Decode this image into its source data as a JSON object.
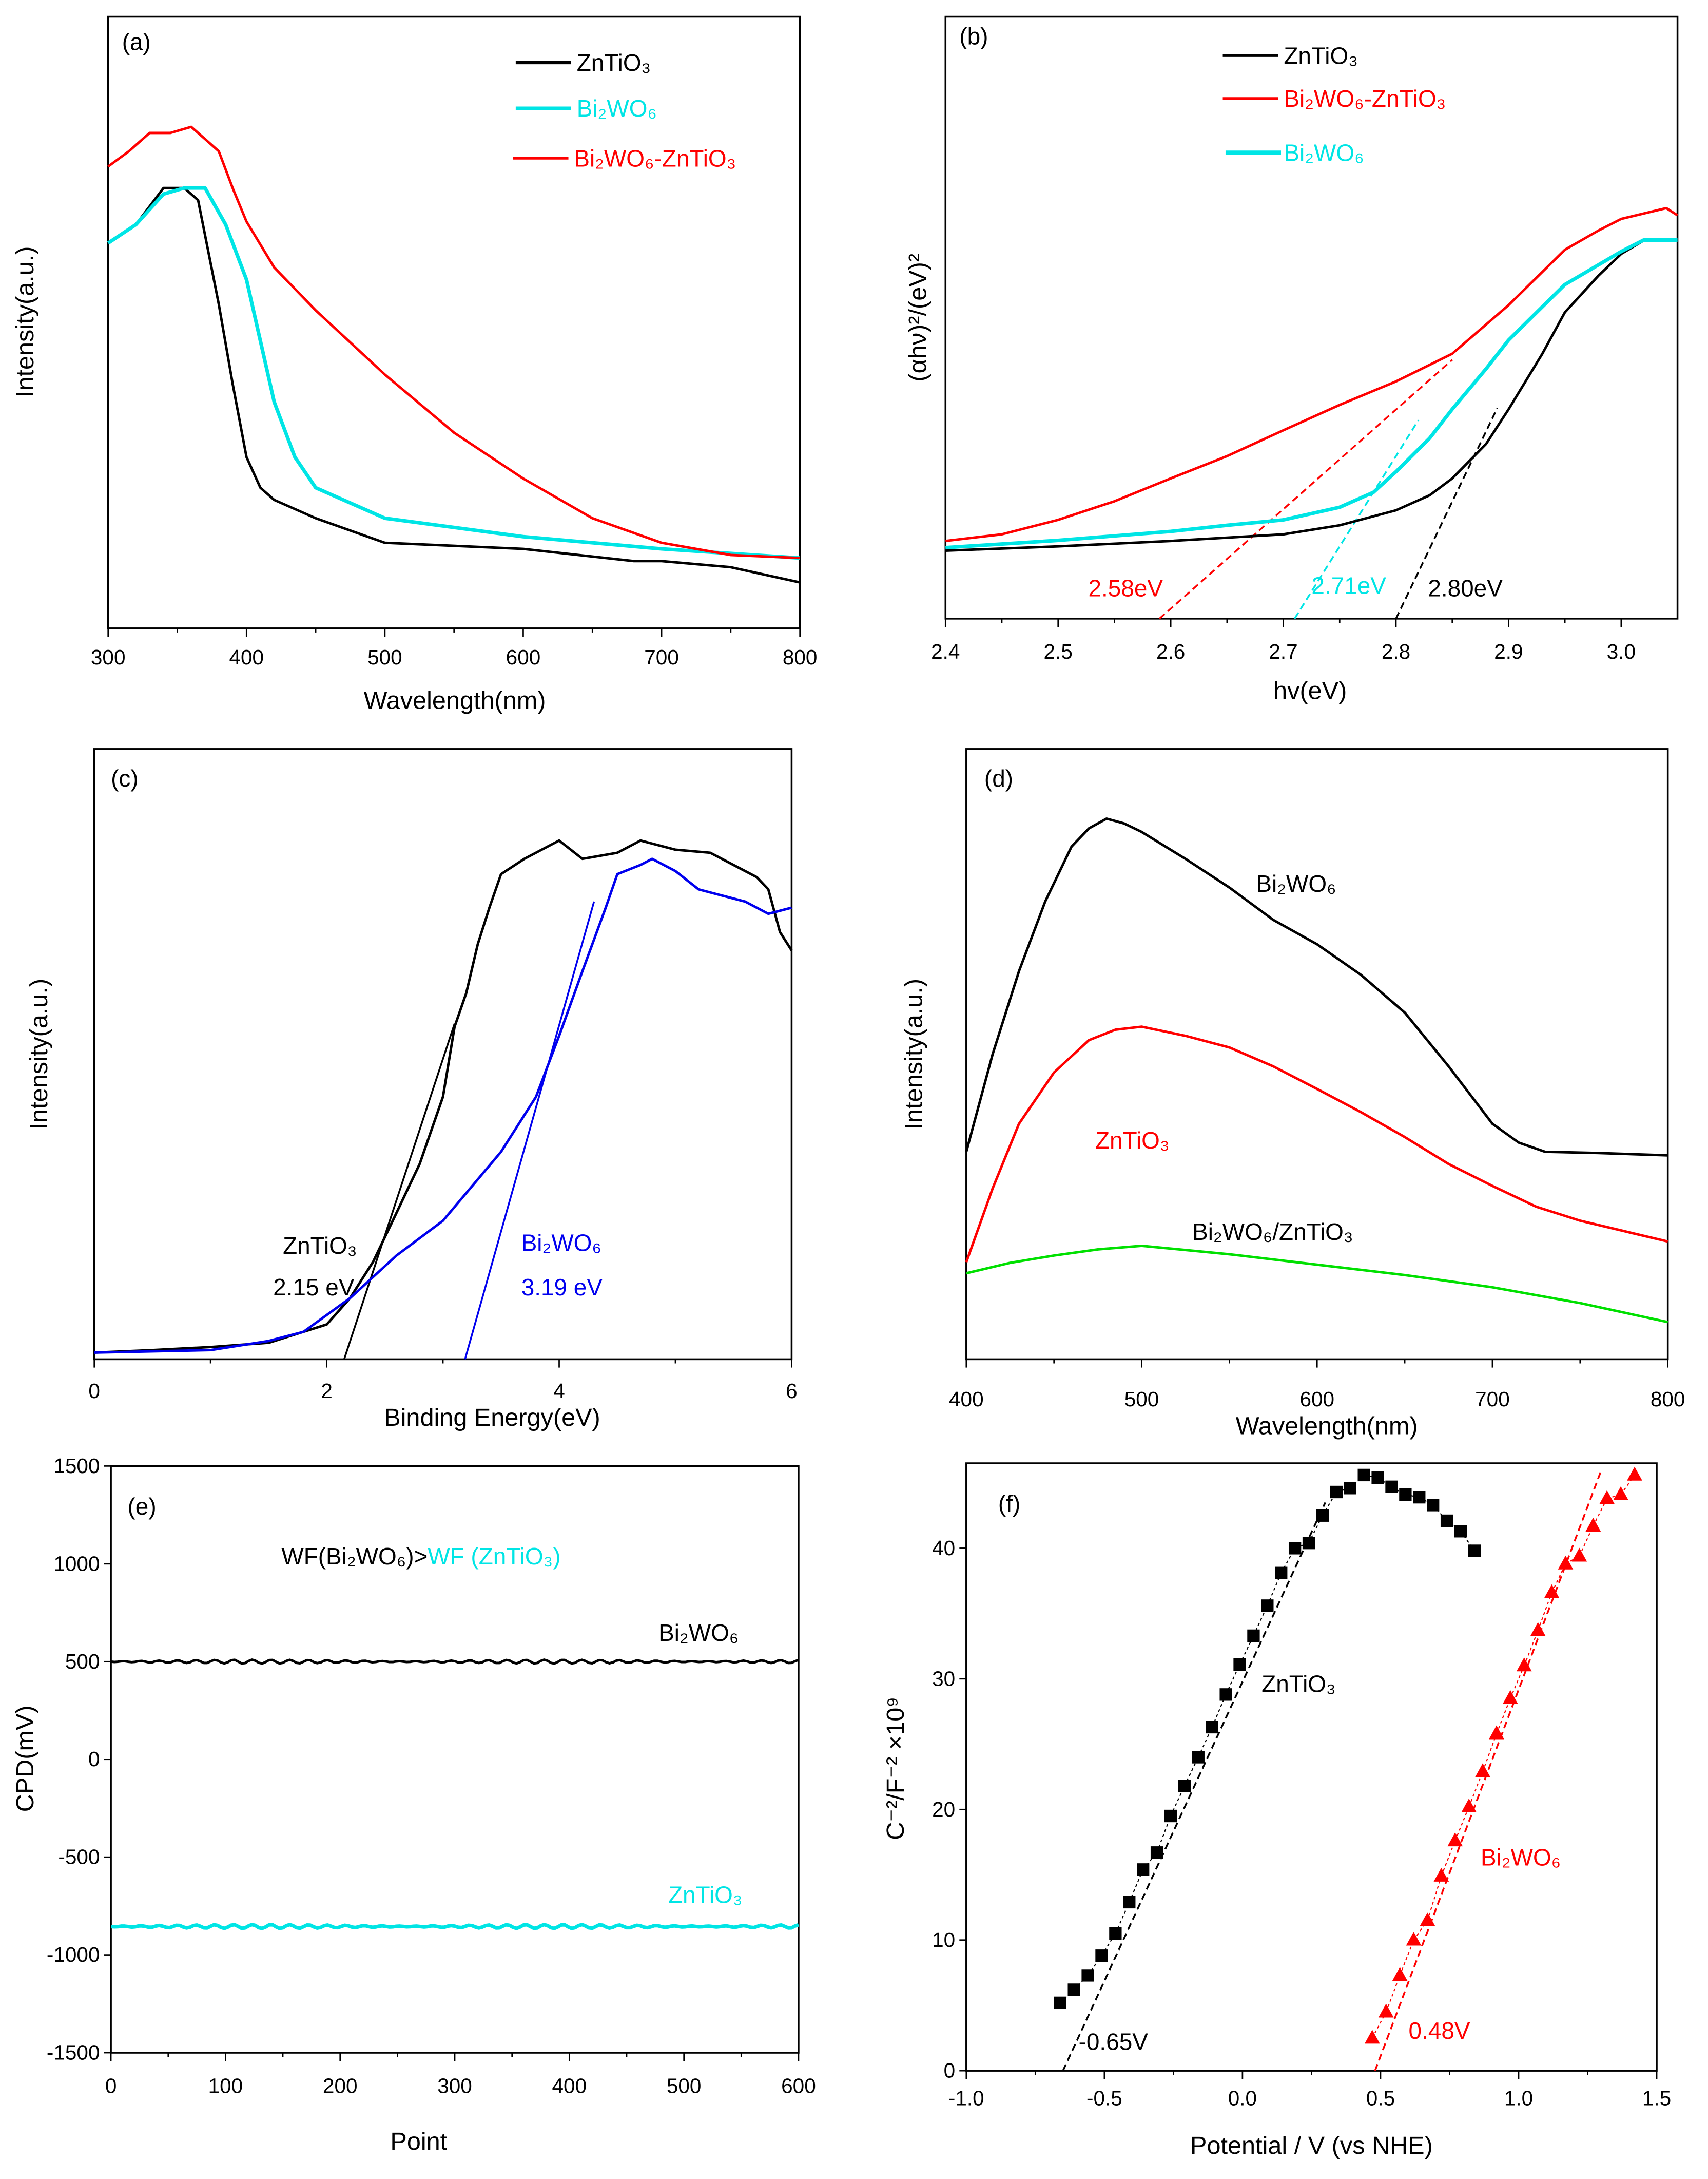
{
  "chart_data": [
    {
      "panel": "(a)",
      "type": "line",
      "xlabel": "Wavelength(nm)",
      "ylabel": "Intensity(a.u.)",
      "xlim": [
        300,
        800
      ],
      "ylim": [
        0,
        1
      ],
      "xticks": [
        300,
        400,
        500,
        600,
        700,
        800
      ],
      "yticks": [],
      "legend": "top-right",
      "series": [
        {
          "name": "ZnTiO₃",
          "color": "#000000",
          "x": [
            300,
            320,
            340,
            355,
            365,
            380,
            390,
            400,
            410,
            420,
            450,
            500,
            600,
            680,
            700,
            750,
            800
          ],
          "y": [
            0.63,
            0.66,
            0.72,
            0.72,
            0.7,
            0.53,
            0.4,
            0.28,
            0.23,
            0.21,
            0.18,
            0.14,
            0.13,
            0.11,
            0.11,
            0.1,
            0.075
          ]
        },
        {
          "name": "Bi₂WO₆",
          "color": "#00e5e5",
          "x": [
            300,
            320,
            340,
            355,
            370,
            385,
            400,
            410,
            420,
            435,
            450,
            500,
            600,
            700,
            800
          ],
          "y": [
            0.63,
            0.66,
            0.71,
            0.72,
            0.72,
            0.66,
            0.57,
            0.47,
            0.37,
            0.28,
            0.23,
            0.18,
            0.15,
            0.13,
            0.115
          ]
        },
        {
          "name": "Bi₂WO₆-ZnTiO₃",
          "color": "#ff0000",
          "x": [
            300,
            315,
            330,
            345,
            360,
            370,
            380,
            390,
            400,
            420,
            450,
            500,
            550,
            600,
            650,
            700,
            750,
            800
          ],
          "y": [
            0.755,
            0.78,
            0.81,
            0.81,
            0.82,
            0.8,
            0.78,
            0.72,
            0.665,
            0.59,
            0.52,
            0.415,
            0.32,
            0.245,
            0.18,
            0.14,
            0.12,
            0.115
          ]
        }
      ]
    },
    {
      "panel": "(b)",
      "type": "line",
      "xlabel": "hv(eV)",
      "ylabel": "(αhν)²/(eV)²",
      "xlim": [
        2.4,
        3.05
      ],
      "ylim": [
        0,
        1
      ],
      "xticks": [
        2.4,
        2.5,
        2.6,
        2.7,
        2.8,
        2.9,
        3.0
      ],
      "yticks": [],
      "legend": "top-center",
      "series": [
        {
          "name": "ZnTiO₃",
          "color": "#000000",
          "x": [
            2.4,
            2.5,
            2.6,
            2.7,
            2.75,
            2.8,
            2.83,
            2.85,
            2.88,
            2.9,
            2.93,
            2.95,
            2.98,
            3.0,
            3.02,
            3.05
          ],
          "y": [
            0.113,
            0.12,
            0.129,
            0.14,
            0.155,
            0.18,
            0.205,
            0.233,
            0.29,
            0.348,
            0.44,
            0.509,
            0.57,
            0.606,
            0.628,
            0.629
          ]
        },
        {
          "name": "Bi₂WO₆-ZnTiO₃",
          "color": "#ff0000",
          "x": [
            2.4,
            2.45,
            2.5,
            2.55,
            2.6,
            2.65,
            2.7,
            2.75,
            2.8,
            2.85,
            2.9,
            2.95,
            2.98,
            3.0,
            3.04,
            3.05
          ],
          "y": [
            0.129,
            0.14,
            0.164,
            0.195,
            0.233,
            0.27,
            0.313,
            0.355,
            0.394,
            0.44,
            0.521,
            0.613,
            0.645,
            0.664,
            0.682,
            0.67
          ]
        },
        {
          "name": "Bi₂WO₆",
          "color": "#00e5e5",
          "x": [
            2.4,
            2.5,
            2.6,
            2.65,
            2.7,
            2.75,
            2.78,
            2.8,
            2.83,
            2.85,
            2.88,
            2.9,
            2.95,
            3.0,
            3.02,
            3.05
          ],
          "y": [
            0.118,
            0.13,
            0.145,
            0.155,
            0.164,
            0.185,
            0.21,
            0.244,
            0.3,
            0.348,
            0.415,
            0.463,
            0.555,
            0.61,
            0.629,
            0.629
          ]
        }
      ],
      "tangents": [
        {
          "label": "2.58eV",
          "color": "#ff0000",
          "x": [
            2.59,
            2.85
          ],
          "y": [
            0,
            0.43
          ]
        },
        {
          "label": "2.71eV",
          "color": "#00e5e5",
          "x": [
            2.71,
            2.82
          ],
          "y": [
            0,
            0.33
          ]
        },
        {
          "label": "2.80eV",
          "color": "#000000",
          "x": [
            2.8,
            2.89
          ],
          "y": [
            0,
            0.35
          ]
        }
      ]
    },
    {
      "panel": "(c)",
      "type": "line",
      "xlabel": "Binding Energy(eV)",
      "ylabel": "Intensity(a.u.)",
      "xlim": [
        0,
        6
      ],
      "ylim": [
        0,
        1
      ],
      "xticks": [
        0,
        2,
        4,
        6
      ],
      "yticks": [],
      "series": [
        {
          "name": "ZnTiO₃",
          "color": "#000000",
          "x": [
            0,
            0.5,
            1,
            1.5,
            2,
            2.2,
            2.4,
            2.6,
            2.8,
            3.0,
            3.1,
            3.2,
            3.3,
            3.4,
            3.5,
            3.7,
            3.9,
            4.0,
            4.2,
            4.5,
            4.7,
            5.0,
            5.3,
            5.5,
            5.7,
            5.8,
            5.9,
            6.0
          ],
          "y": [
            0.011,
            0.015,
            0.02,
            0.027,
            0.057,
            0.1,
            0.16,
            0.24,
            0.32,
            0.43,
            0.545,
            0.6,
            0.68,
            0.74,
            0.795,
            0.82,
            0.84,
            0.85,
            0.82,
            0.83,
            0.85,
            0.835,
            0.83,
            0.81,
            0.79,
            0.77,
            0.7,
            0.67
          ]
        },
        {
          "name": "Bi₂WO₆",
          "color": "#0000ee",
          "x": [
            0,
            1,
            1.5,
            1.8,
            2.2,
            2.6,
            3.0,
            3.5,
            3.8,
            4.0,
            4.2,
            4.4,
            4.5,
            4.7,
            4.8,
            5.0,
            5.2,
            5.4,
            5.6,
            5.8,
            6.0
          ],
          "y": [
            0.011,
            0.015,
            0.03,
            0.045,
            0.1,
            0.17,
            0.227,
            0.34,
            0.43,
            0.53,
            0.636,
            0.74,
            0.795,
            0.81,
            0.82,
            0.8,
            0.77,
            0.76,
            0.75,
            0.73,
            0.74
          ]
        }
      ],
      "tangents": [
        {
          "label": "2.15 eV",
          "color": "#000000",
          "x": [
            2.15,
            3.1
          ],
          "y": [
            0,
            0.55
          ]
        },
        {
          "label": "3.19 eV",
          "color": "#0000ee",
          "x": [
            3.19,
            4.3
          ],
          "y": [
            0,
            0.75
          ]
        }
      ]
    },
    {
      "panel": "(d)",
      "type": "line",
      "xlabel": "Wavelength(nm)",
      "ylabel": "Intensity(a.u.)",
      "xlim": [
        400,
        800
      ],
      "ylim": [
        0,
        1
      ],
      "xticks": [
        400,
        500,
        600,
        700,
        800
      ],
      "yticks": [],
      "series": [
        {
          "name": "Bi₂WO₆",
          "color": "#000000",
          "x": [
            400,
            415,
            430,
            445,
            460,
            470,
            480,
            490,
            500,
            525,
            550,
            575,
            600,
            625,
            650,
            675,
            700,
            715,
            730,
            760,
            800
          ],
          "y": [
            0.34,
            0.5,
            0.636,
            0.75,
            0.84,
            0.87,
            0.886,
            0.878,
            0.864,
            0.82,
            0.773,
            0.72,
            0.68,
            0.63,
            0.568,
            0.48,
            0.386,
            0.355,
            0.34,
            0.338,
            0.334
          ]
        },
        {
          "name": "ZnTiO₃",
          "color": "#ff0000",
          "x": [
            400,
            415,
            430,
            450,
            470,
            485,
            500,
            525,
            550,
            575,
            600,
            625,
            650,
            675,
            700,
            725,
            750,
            775,
            800
          ],
          "y": [
            0.159,
            0.28,
            0.386,
            0.47,
            0.523,
            0.54,
            0.545,
            0.53,
            0.511,
            0.48,
            0.443,
            0.405,
            0.364,
            0.32,
            0.284,
            0.25,
            0.227,
            0.21,
            0.193
          ]
        },
        {
          "name": "Bi₂WO₆/ZnTiO₃",
          "color": "#00e000",
          "x": [
            400,
            425,
            450,
            475,
            500,
            550,
            600,
            650,
            700,
            750,
            800
          ],
          "y": [
            0.141,
            0.158,
            0.17,
            0.18,
            0.186,
            0.172,
            0.155,
            0.138,
            0.118,
            0.092,
            0.061
          ]
        }
      ]
    },
    {
      "panel": "(e)",
      "type": "line",
      "xlabel": "Point",
      "ylabel": "CPD(mV)",
      "xlim": [
        0,
        600
      ],
      "ylim": [
        -1500,
        1500
      ],
      "xticks": [
        0,
        100,
        200,
        300,
        400,
        500,
        600
      ],
      "yticks": [
        -1500,
        -1000,
        -500,
        0,
        500,
        1000,
        1500
      ],
      "annotation": {
        "left": "WF(Bi₂WO₆)>",
        "right": "WF (ZnTiO₃)",
        "right_color": "#00e5e5"
      },
      "series": [
        {
          "name": "Bi₂WO₆",
          "color": "#000000",
          "x": [
            0,
            600
          ],
          "y": [
            500,
            500
          ]
        },
        {
          "name": "ZnTiO₃",
          "color": "#00e5e5",
          "x": [
            0,
            600
          ],
          "y": [
            -855,
            -855
          ]
        }
      ]
    },
    {
      "panel": "(f)",
      "type": "scatter",
      "xlabel": "Potential / V (vs NHE)",
      "ylabel": "C⁻²/F⁻² ×10⁹",
      "xlim": [
        -1.0,
        1.5
      ],
      "ylim": [
        0,
        46.5
      ],
      "xticks": [
        -1.0,
        -0.5,
        0.0,
        0.5,
        1.0,
        1.5
      ],
      "yticks": [
        0,
        10,
        20,
        30,
        40
      ],
      "series": [
        {
          "name": "ZnTiO₃",
          "color": "#000000",
          "marker": "square",
          "x_start": -0.66,
          "x_step": 0.05,
          "y": [
            5.2,
            6.2,
            7.3,
            8.8,
            10.5,
            12.9,
            15.4,
            16.7,
            19.5,
            21.8,
            24.0,
            26.3,
            28.8,
            31.1,
            33.3,
            35.6,
            38.1,
            40.0,
            40.4,
            42.5,
            44.3,
            44.6,
            45.6,
            45.4,
            44.7,
            44.1,
            43.9,
            43.3,
            42.1,
            41.3,
            39.8
          ]
        },
        {
          "name": "Bi₂WO₆",
          "color": "#ff0000",
          "marker": "triangle",
          "x_start": 0.47,
          "x_step": 0.05,
          "y": [
            2.5,
            4.5,
            7.3,
            10.0,
            11.5,
            14.9,
            17.6,
            20.2,
            22.9,
            25.8,
            28.5,
            31.0,
            33.7,
            36.6,
            38.8,
            39.4,
            41.7,
            43.8,
            44.1,
            45.6
          ]
        }
      ],
      "tangents": [
        {
          "label": "-0.65V",
          "color": "#000000",
          "x": [
            -0.65,
            0.3
          ],
          "y": [
            0,
            43.5
          ]
        },
        {
          "label": "0.48V",
          "color": "#ff0000",
          "x": [
            0.48,
            1.3
          ],
          "y": [
            0,
            46
          ]
        }
      ]
    }
  ]
}
